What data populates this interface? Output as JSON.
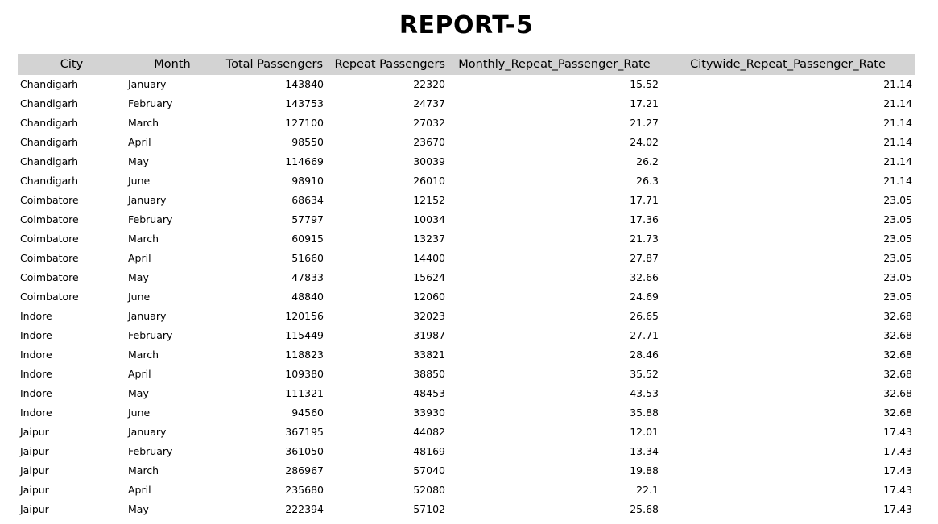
{
  "title": "REPORT-5",
  "columns": [
    "City",
    "Month",
    "Total Passengers",
    "Repeat Passengers",
    "Monthly_Repeat_Passenger_Rate",
    "Citywide_Repeat_Passenger_Rate"
  ],
  "rows": [
    [
      "Chandigarh",
      "January",
      "143840",
      "22320",
      "15.52",
      "21.14"
    ],
    [
      "Chandigarh",
      "February",
      "143753",
      "24737",
      "17.21",
      "21.14"
    ],
    [
      "Chandigarh",
      "March",
      "127100",
      "27032",
      "21.27",
      "21.14"
    ],
    [
      "Chandigarh",
      "April",
      "98550",
      "23670",
      "24.02",
      "21.14"
    ],
    [
      "Chandigarh",
      "May",
      "114669",
      "30039",
      "26.2",
      "21.14"
    ],
    [
      "Chandigarh",
      "June",
      "98910",
      "26010",
      "26.3",
      "21.14"
    ],
    [
      "Coimbatore",
      "January",
      "68634",
      "12152",
      "17.71",
      "23.05"
    ],
    [
      "Coimbatore",
      "February",
      "57797",
      "10034",
      "17.36",
      "23.05"
    ],
    [
      "Coimbatore",
      "March",
      "60915",
      "13237",
      "21.73",
      "23.05"
    ],
    [
      "Coimbatore",
      "April",
      "51660",
      "14400",
      "27.87",
      "23.05"
    ],
    [
      "Coimbatore",
      "May",
      "47833",
      "15624",
      "32.66",
      "23.05"
    ],
    [
      "Coimbatore",
      "June",
      "48840",
      "12060",
      "24.69",
      "23.05"
    ],
    [
      "Indore",
      "January",
      "120156",
      "32023",
      "26.65",
      "32.68"
    ],
    [
      "Indore",
      "February",
      "115449",
      "31987",
      "27.71",
      "32.68"
    ],
    [
      "Indore",
      "March",
      "118823",
      "33821",
      "28.46",
      "32.68"
    ],
    [
      "Indore",
      "April",
      "109380",
      "38850",
      "35.52",
      "32.68"
    ],
    [
      "Indore",
      "May",
      "111321",
      "48453",
      "43.53",
      "32.68"
    ],
    [
      "Indore",
      "June",
      "94560",
      "33930",
      "35.88",
      "32.68"
    ],
    [
      "Jaipur",
      "January",
      "367195",
      "44082",
      "12.01",
      "17.43"
    ],
    [
      "Jaipur",
      "February",
      "361050",
      "48169",
      "13.34",
      "17.43"
    ],
    [
      "Jaipur",
      "March",
      "286967",
      "57040",
      "19.88",
      "17.43"
    ],
    [
      "Jaipur",
      "April",
      "235680",
      "52080",
      "22.1",
      "17.43"
    ],
    [
      "Jaipur",
      "May",
      "222394",
      "57102",
      "25.68",
      "17.43"
    ]
  ],
  "colors": {
    "header_background": "#d3d3d3",
    "text": "#000000",
    "background": "#ffffff"
  }
}
